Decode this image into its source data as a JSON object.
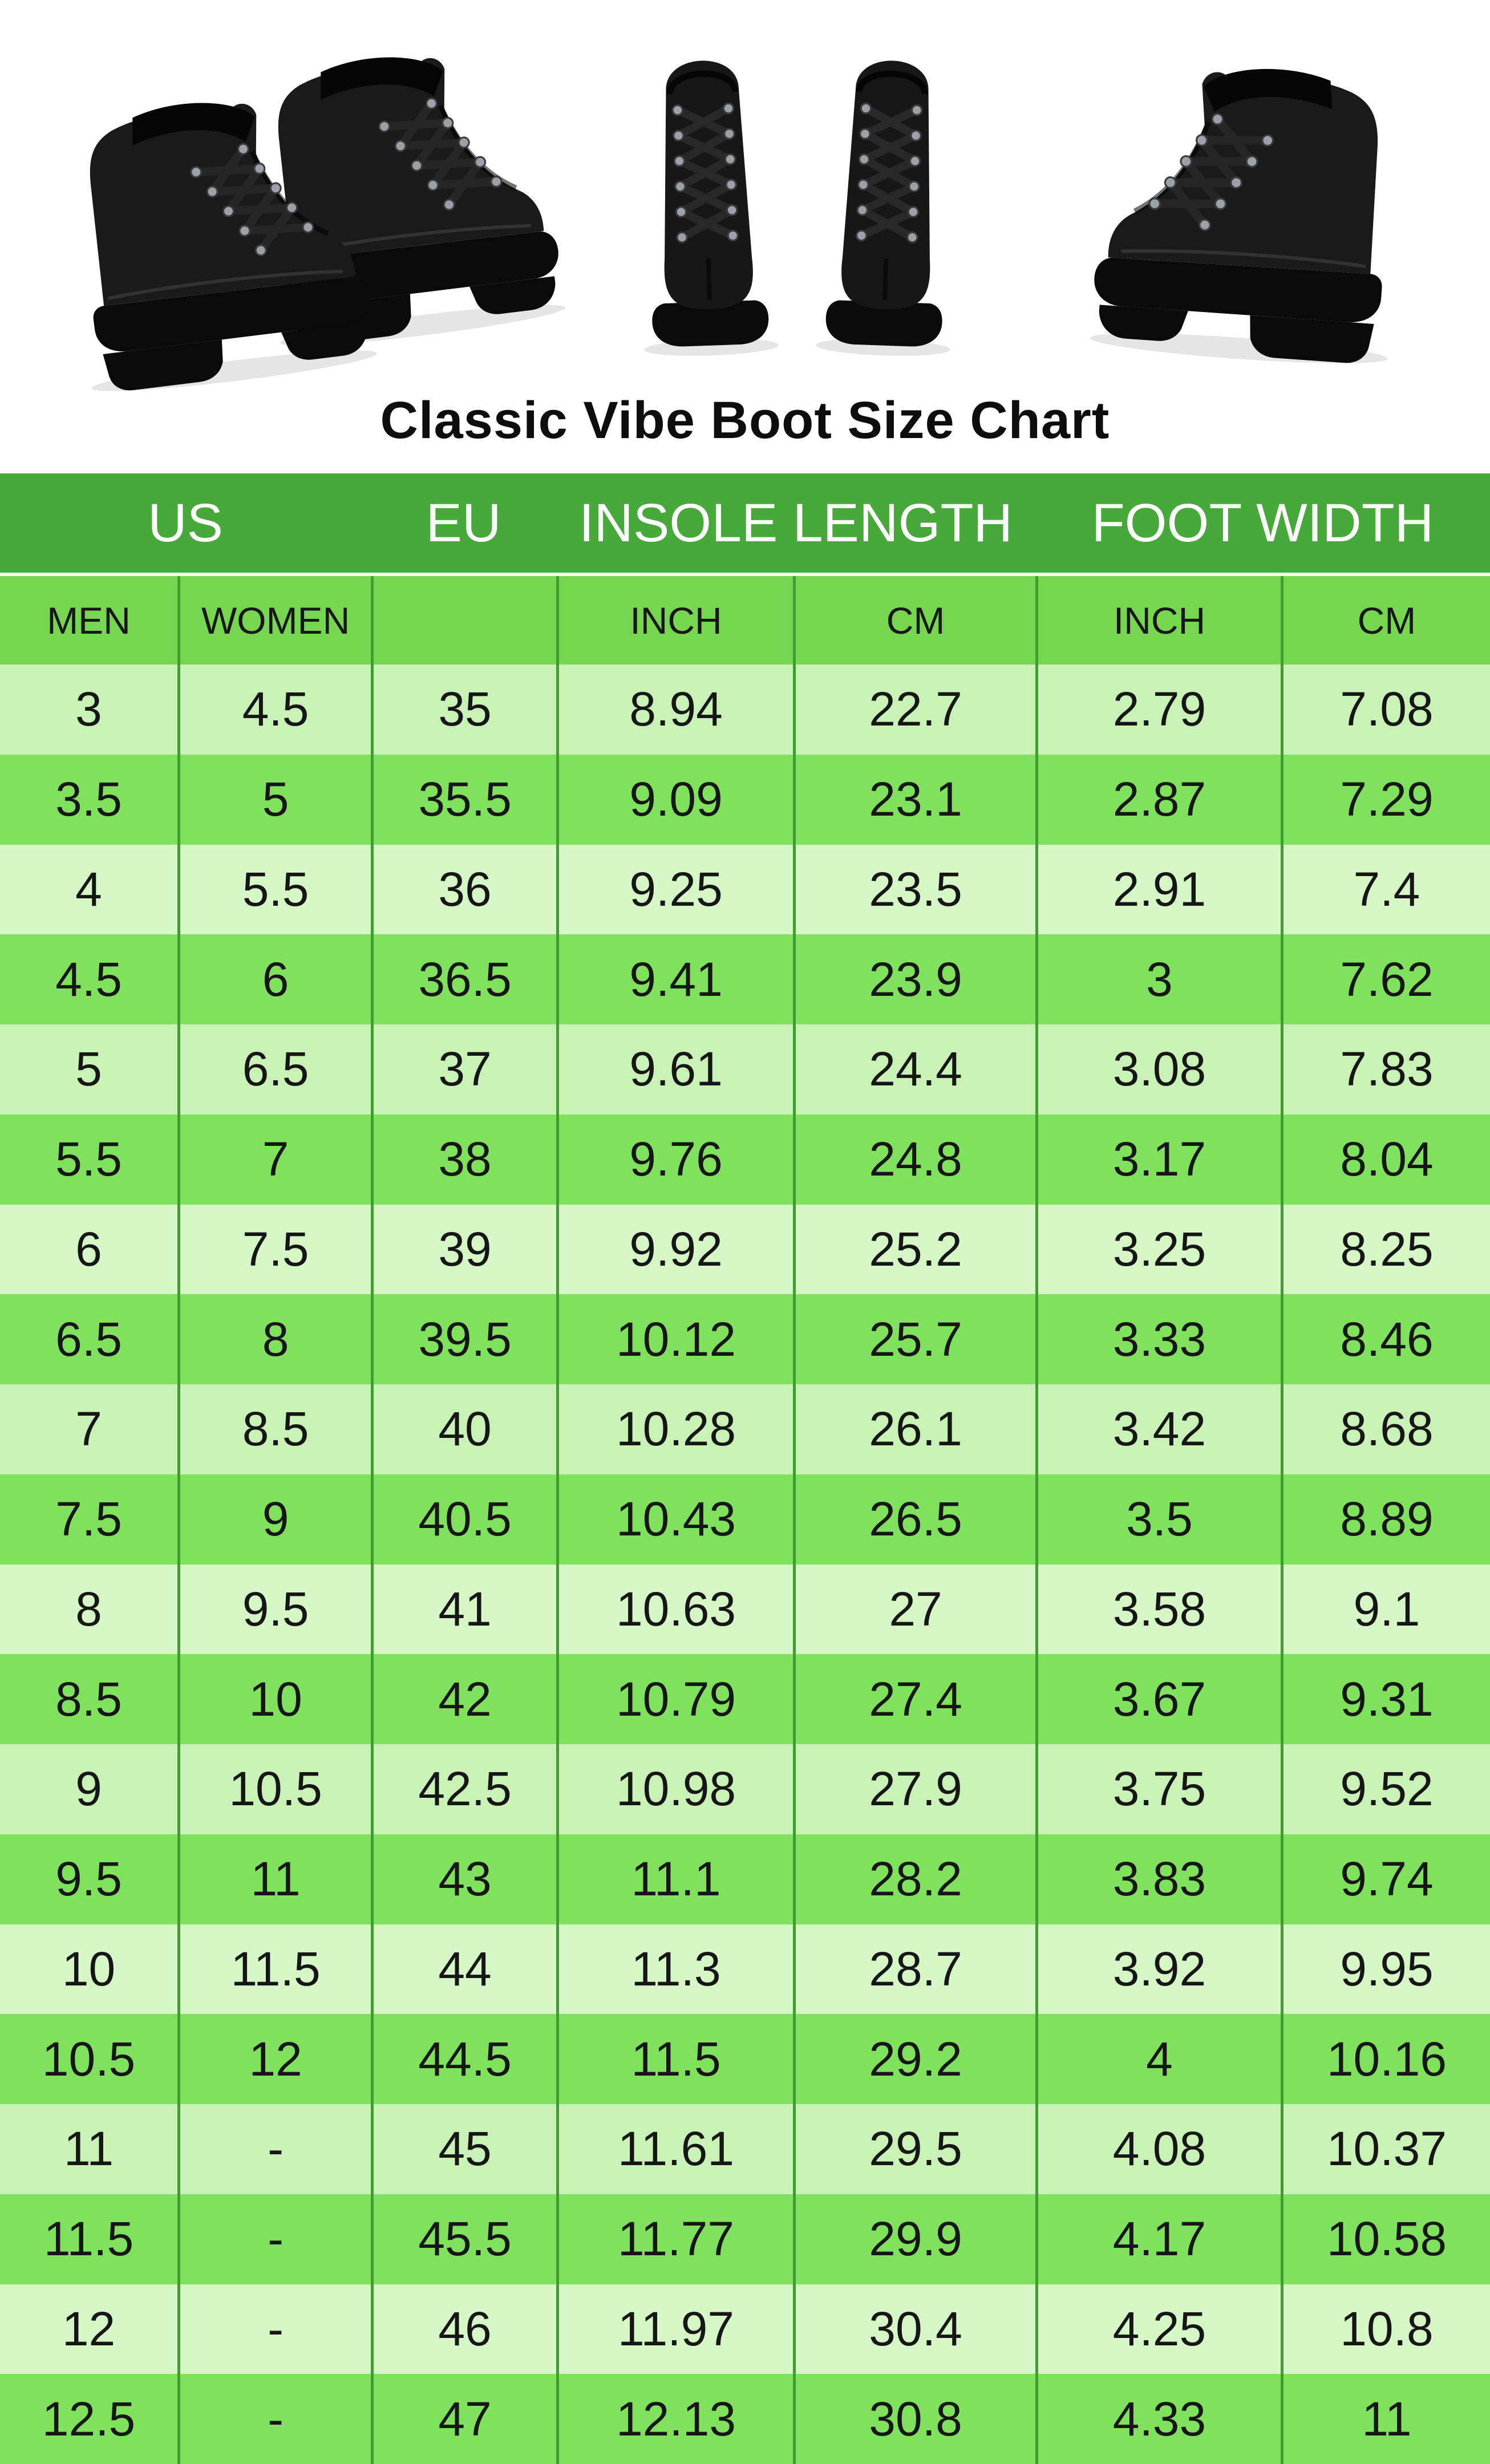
{
  "title": "Classic Vibe Boot Size Chart",
  "hero_images": {
    "left": "pair of black leather lace-up boots, three-quarter side view, toes pointing right",
    "middle": "pair of black lace-up boots viewed from the front",
    "right": "single black lace-up boot, three-quarter side view, toe pointing left"
  },
  "colors": {
    "header_band_green": "#48a93b",
    "subheader_green": "#77d64f",
    "row_light_a": "#c9f2b6",
    "row_light_b": "#d6f8c7",
    "row_dark": "#80e15d",
    "divider_green": "#3f9e2f",
    "text_ink": "#161616",
    "header_text": "#ffffff",
    "boot_black": "#161616"
  },
  "chart_data": {
    "type": "table",
    "title": "Classic Vibe Boot Size Chart",
    "header_groups": [
      {
        "label": "US",
        "span": 2
      },
      {
        "label": "EU",
        "span": 1
      },
      {
        "label": "INSOLE LENGTH",
        "span": 2
      },
      {
        "label": "FOOT WIDTH",
        "span": 2
      }
    ],
    "columns": [
      "MEN",
      "WOMEN",
      "",
      "INCH",
      "CM",
      "INCH",
      "CM"
    ],
    "rows": [
      [
        "3",
        "4.5",
        "35",
        "8.94",
        "22.7",
        "2.79",
        "7.08"
      ],
      [
        "3.5",
        "5",
        "35.5",
        "9.09",
        "23.1",
        "2.87",
        "7.29"
      ],
      [
        "4",
        "5.5",
        "36",
        "9.25",
        "23.5",
        "2.91",
        "7.4"
      ],
      [
        "4.5",
        "6",
        "36.5",
        "9.41",
        "23.9",
        "3",
        "7.62"
      ],
      [
        "5",
        "6.5",
        "37",
        "9.61",
        "24.4",
        "3.08",
        "7.83"
      ],
      [
        "5.5",
        "7",
        "38",
        "9.76",
        "24.8",
        "3.17",
        "8.04"
      ],
      [
        "6",
        "7.5",
        "39",
        "9.92",
        "25.2",
        "3.25",
        "8.25"
      ],
      [
        "6.5",
        "8",
        "39.5",
        "10.12",
        "25.7",
        "3.33",
        "8.46"
      ],
      [
        "7",
        "8.5",
        "40",
        "10.28",
        "26.1",
        "3.42",
        "8.68"
      ],
      [
        "7.5",
        "9",
        "40.5",
        "10.43",
        "26.5",
        "3.5",
        "8.89"
      ],
      [
        "8",
        "9.5",
        "41",
        "10.63",
        "27",
        "3.58",
        "9.1"
      ],
      [
        "8.5",
        "10",
        "42",
        "10.79",
        "27.4",
        "3.67",
        "9.31"
      ],
      [
        "9",
        "10.5",
        "42.5",
        "10.98",
        "27.9",
        "3.75",
        "9.52"
      ],
      [
        "9.5",
        "11",
        "43",
        "11.1",
        "28.2",
        "3.83",
        "9.74"
      ],
      [
        "10",
        "11.5",
        "44",
        "11.3",
        "28.7",
        "3.92",
        "9.95"
      ],
      [
        "10.5",
        "12",
        "44.5",
        "11.5",
        "29.2",
        "4",
        "10.16"
      ],
      [
        "11",
        "-",
        "45",
        "11.61",
        "29.5",
        "4.08",
        "10.37"
      ],
      [
        "11.5",
        "-",
        "45.5",
        "11.77",
        "29.9",
        "4.17",
        "10.58"
      ],
      [
        "12",
        "-",
        "46",
        "11.97",
        "30.4",
        "4.25",
        "10.8"
      ],
      [
        "12.5",
        "-",
        "47",
        "12.13",
        "30.8",
        "4.33",
        "11"
      ]
    ]
  }
}
